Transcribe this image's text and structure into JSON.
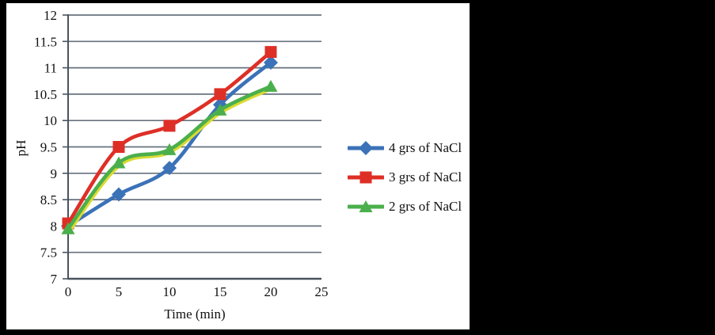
{
  "figure": {
    "frame_background": "#000000",
    "panel_background": "#ffffff"
  },
  "colors": {
    "gridline": "#67727e",
    "axis": "#49535d",
    "text": "#101010",
    "green_shadow": "#d9da34"
  },
  "chart_data": {
    "type": "line",
    "title": "",
    "xlabel": "Time (min)",
    "ylabel": "pH",
    "x": [
      0,
      5,
      10,
      15,
      20
    ],
    "xlim": [
      0,
      25
    ],
    "ylim": [
      7,
      12
    ],
    "x_ticks": [
      0,
      5,
      10,
      15,
      20,
      25
    ],
    "x_tick_labels": [
      "0",
      "5",
      "10",
      "15",
      "20",
      "25"
    ],
    "y_ticks": [
      7,
      7.5,
      8,
      8.5,
      9,
      9.5,
      10,
      10.5,
      11,
      11.5,
      12
    ],
    "y_tick_labels": [
      "7",
      "7.5",
      "8",
      "8.5",
      "9",
      "9.5",
      "10",
      "10.5",
      "11",
      "11.5",
      "12"
    ],
    "grid": "horizontal",
    "line_style": "smooth",
    "legend_position": "right",
    "series": [
      {
        "name": "4 grs of NaCl",
        "marker": "diamond",
        "color": "#3b72b8",
        "values": [
          8.0,
          8.6,
          9.1,
          10.3,
          11.1
        ]
      },
      {
        "name": "3 grs of NaCl",
        "marker": "square",
        "color": "#de2f26",
        "values": [
          8.05,
          9.5,
          9.9,
          10.5,
          11.3
        ]
      },
      {
        "name": "2 grs of NaCl",
        "marker": "triangle",
        "color": "#4baf4c",
        "values": [
          7.95,
          9.2,
          9.45,
          10.2,
          10.65
        ]
      }
    ]
  }
}
